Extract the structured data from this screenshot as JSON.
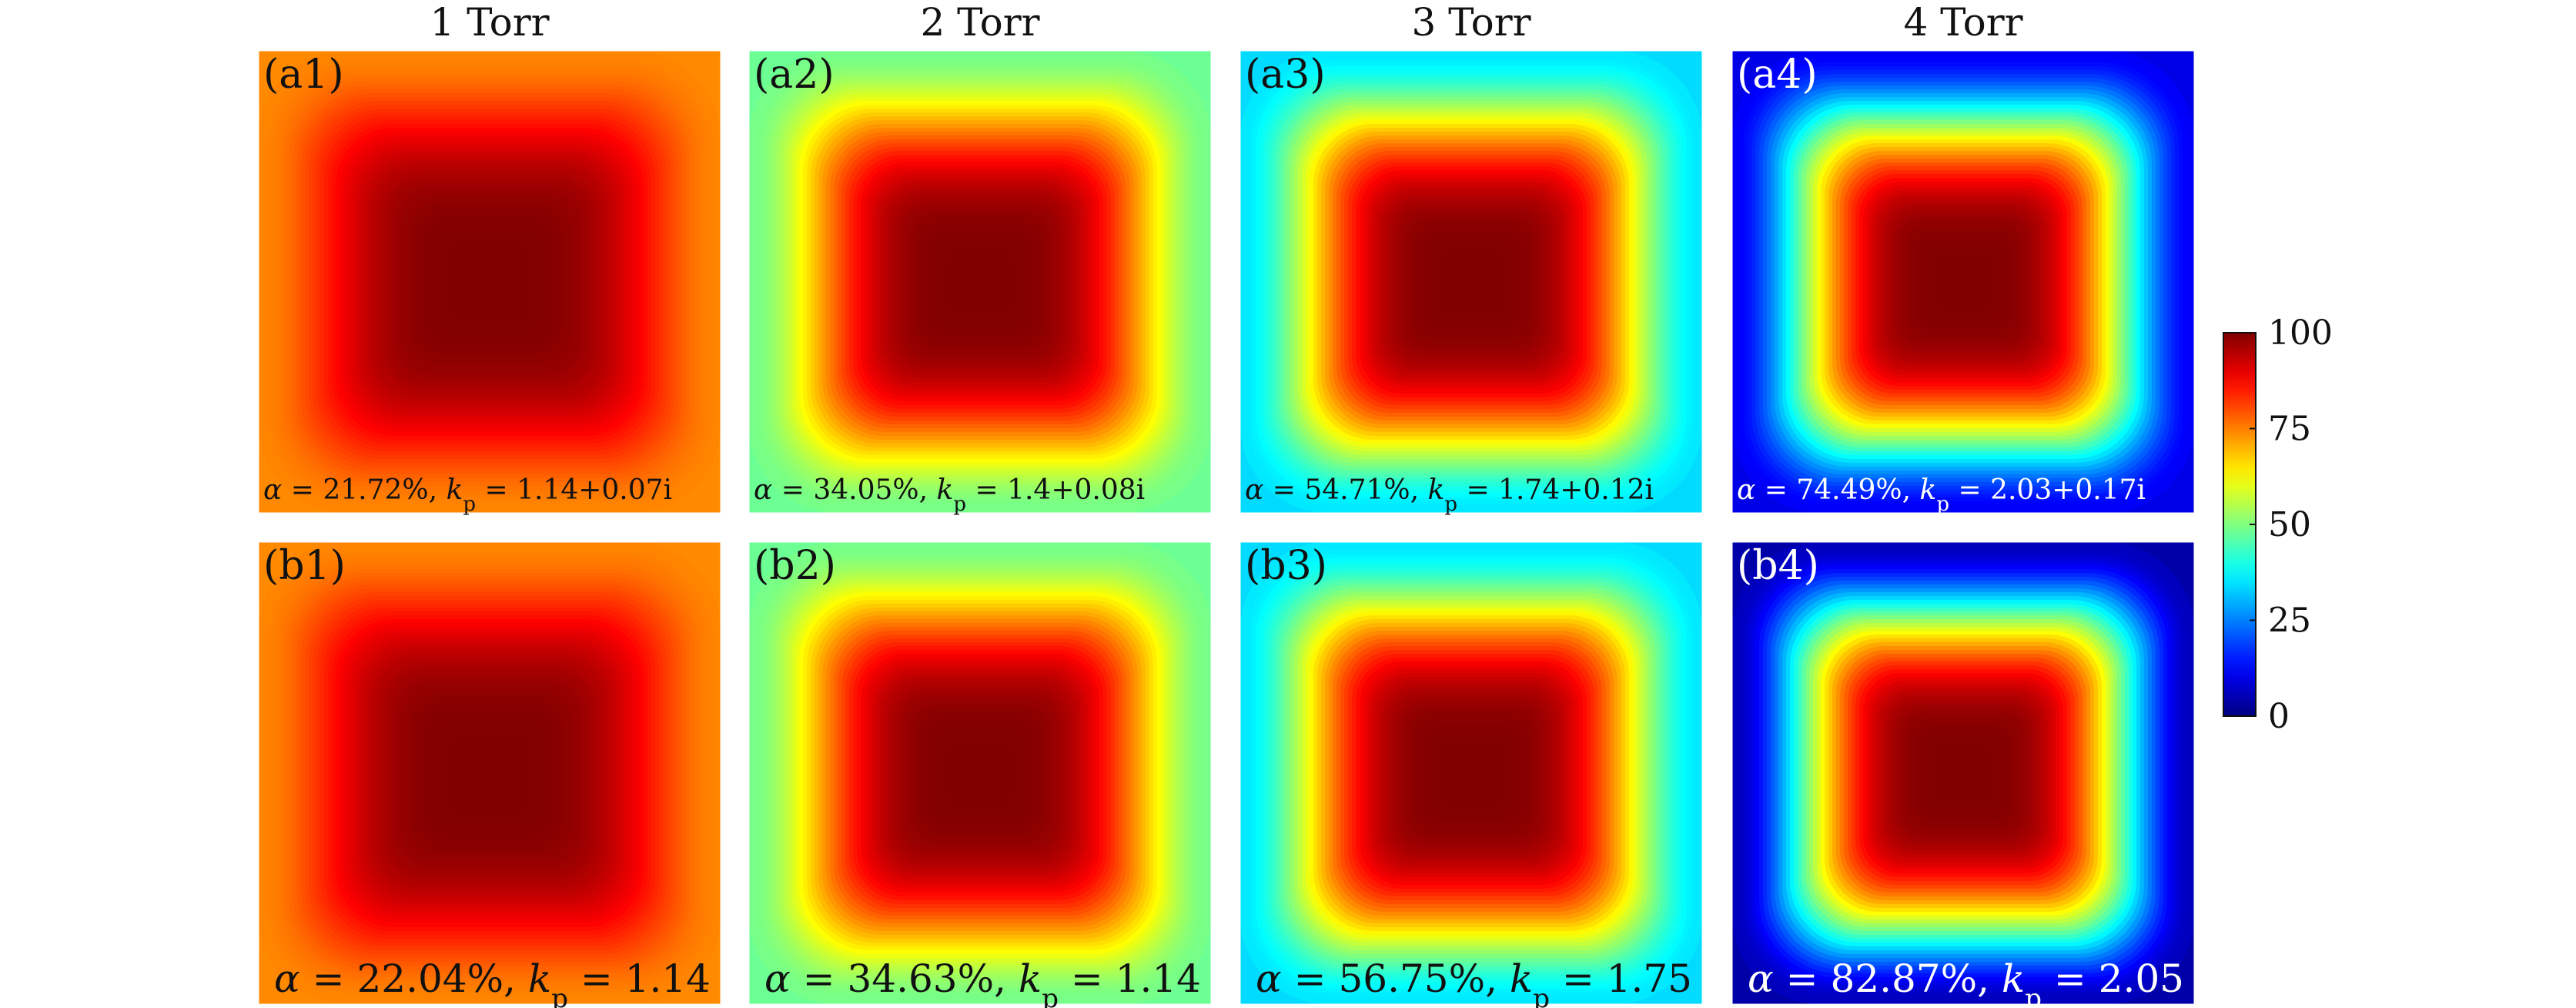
{
  "chart_data": {
    "type": "heatmap",
    "colormap": "jet",
    "column_titles": [
      "1 Torr",
      "2 Torr",
      "3 Torr",
      "4 Torr"
    ],
    "panels": [
      {
        "label": "(a1)",
        "row": "a",
        "pressure": "1 Torr",
        "edge_value": 74,
        "center_value": 100,
        "alpha": "21.72%",
        "kp_value": "1.14+0.07i"
      },
      {
        "label": "(a2)",
        "row": "a",
        "pressure": "2 Torr",
        "edge_value": 48,
        "center_value": 100,
        "alpha": "34.05%",
        "kp_value": "1.4+0.08i"
      },
      {
        "label": "(a3)",
        "row": "a",
        "pressure": "3 Torr",
        "edge_value": 34,
        "center_value": 100,
        "alpha": "54.71%",
        "kp_value": "1.74+0.12i"
      },
      {
        "label": "(a4)",
        "row": "a",
        "pressure": "4 Torr",
        "edge_value": 10,
        "center_value": 100,
        "alpha": "74.49%",
        "kp_value": "2.03+0.17i"
      },
      {
        "label": "(b1)",
        "row": "b",
        "pressure": "1 Torr",
        "edge_value": 74,
        "center_value": 100,
        "alpha": "22.04%",
        "kp_value": "1.14"
      },
      {
        "label": "(b2)",
        "row": "b",
        "pressure": "2 Torr",
        "edge_value": 48,
        "center_value": 100,
        "alpha": "34.63%",
        "kp_value": "1.14"
      },
      {
        "label": "(b3)",
        "row": "b",
        "pressure": "3 Torr",
        "edge_value": 34,
        "center_value": 100,
        "alpha": "56.75%",
        "kp_value": "1.75"
      },
      {
        "label": "(b4)",
        "row": "b",
        "pressure": "4 Torr",
        "edge_value": 4,
        "center_value": 100,
        "alpha": "82.87%",
        "kp_value": "2.05"
      }
    ],
    "colorbar": {
      "min": 0,
      "max": 100,
      "ticks": [
        100,
        75,
        50,
        25,
        0
      ]
    },
    "alpha_symbol": "α",
    "kp_symbol": "k",
    "kp_subscript": "p",
    "equals": "=",
    "separator": ","
  }
}
